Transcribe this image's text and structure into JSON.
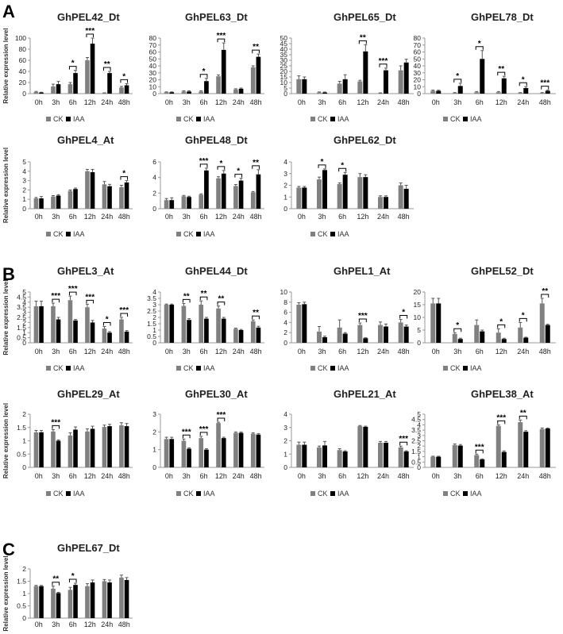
{
  "figure": {
    "ylabel": "Relative expression level",
    "legend": [
      {
        "name": "CK",
        "color": "#808080"
      },
      {
        "name": "IAA",
        "color": "#000000"
      }
    ],
    "panels": [
      {
        "letter": "A"
      },
      {
        "letter": "B"
      },
      {
        "letter": "C"
      }
    ]
  },
  "chart_data": [
    {
      "type": "bar",
      "panel": "A",
      "title": "GhPEL42_Dt",
      "categories": [
        "0h",
        "3h",
        "6h",
        "12h",
        "24h",
        "48h"
      ],
      "ylim": [
        0,
        100
      ],
      "yticks": [
        0,
        20,
        40,
        60,
        80,
        100
      ],
      "series": [
        {
          "name": "CK",
          "values": [
            3,
            13,
            17,
            60,
            1,
            11
          ]
        },
        {
          "name": "IAA",
          "values": [
            2,
            17,
            37,
            90,
            37,
            15
          ]
        }
      ],
      "errors": [
        [
          1,
          4,
          3,
          5,
          0.5,
          2
        ],
        [
          0.5,
          5,
          5,
          10,
          3,
          3
        ]
      ],
      "significance": [
        {
          "x": "6h",
          "label": "*"
        },
        {
          "x": "12h",
          "label": "***"
        },
        {
          "x": "24h",
          "label": "**"
        },
        {
          "x": "48h",
          "label": "*"
        }
      ]
    },
    {
      "type": "bar",
      "panel": "A",
      "title": "GhPEL63_Dt",
      "categories": [
        "0h",
        "3h",
        "6h",
        "12h",
        "24h",
        "48h"
      ],
      "ylim": [
        0,
        80
      ],
      "yticks": [
        0,
        10,
        20,
        30,
        40,
        50,
        60,
        70,
        80
      ],
      "series": [
        {
          "name": "CK",
          "values": [
            2,
            3,
            3,
            25,
            6,
            38
          ]
        },
        {
          "name": "IAA",
          "values": [
            2,
            3,
            18,
            63,
            7,
            53
          ]
        }
      ],
      "errors": [
        [
          0.5,
          1,
          1,
          2,
          1,
          2
        ],
        [
          0.5,
          1,
          4,
          10,
          1,
          4
        ]
      ],
      "significance": [
        {
          "x": "6h",
          "label": "*"
        },
        {
          "x": "12h",
          "label": "***"
        },
        {
          "x": "48h",
          "label": "**"
        }
      ]
    },
    {
      "type": "bar",
      "panel": "A",
      "title": "GhPEL65_Dt",
      "categories": [
        "0h",
        "3h",
        "6h",
        "12h",
        "24h",
        "48h"
      ],
      "ylim": [
        0,
        50
      ],
      "yticks": [
        0,
        5,
        10,
        15,
        20,
        25,
        30,
        35,
        40,
        45,
        50
      ],
      "series": [
        {
          "name": "CK",
          "values": [
            13,
            1,
            9,
            11,
            0.5,
            21
          ]
        },
        {
          "name": "IAA",
          "values": [
            13,
            1,
            13,
            38,
            21,
            28
          ]
        }
      ],
      "errors": [
        [
          3,
          0.5,
          2,
          1,
          0.2,
          4
        ],
        [
          2,
          0.5,
          4,
          6,
          2,
          3
        ]
      ],
      "significance": [
        {
          "x": "12h",
          "label": "**"
        },
        {
          "x": "24h",
          "label": "***"
        }
      ]
    },
    {
      "type": "bar",
      "panel": "A",
      "title": "GhPEL78_Dt",
      "categories": [
        "0h",
        "3h",
        "6h",
        "12h",
        "24h",
        "48h"
      ],
      "ylim": [
        0,
        80
      ],
      "yticks": [
        0,
        10,
        20,
        30,
        40,
        50,
        60,
        70,
        80
      ],
      "series": [
        {
          "name": "CK",
          "values": [
            4,
            1,
            2,
            2,
            1,
            1
          ]
        },
        {
          "name": "IAA",
          "values": [
            4,
            11,
            50,
            22,
            8,
            4
          ]
        }
      ],
      "errors": [
        [
          1,
          0.5,
          1,
          1,
          0.5,
          0.5
        ],
        [
          1,
          4,
          12,
          3,
          2,
          1
        ]
      ],
      "significance": [
        {
          "x": "3h",
          "label": "*"
        },
        {
          "x": "6h",
          "label": "*"
        },
        {
          "x": "12h",
          "label": "**"
        },
        {
          "x": "24h",
          "label": "*"
        },
        {
          "x": "48h",
          "label": "***"
        }
      ]
    },
    {
      "type": "bar",
      "panel": "A",
      "title": "GhPEL4_At",
      "categories": [
        "0h",
        "3h",
        "6h",
        "12h",
        "24h",
        "48h"
      ],
      "ylim": [
        0,
        5
      ],
      "yticks": [
        0,
        1,
        2,
        3,
        4,
        5
      ],
      "series": [
        {
          "name": "CK",
          "values": [
            1.1,
            1.3,
            1.9,
            4.0,
            2.6,
            2.3
          ]
        },
        {
          "name": "IAA",
          "values": [
            1.1,
            1.4,
            2.1,
            3.9,
            2.4,
            2.8
          ]
        }
      ],
      "errors": [
        [
          0.1,
          0.1,
          0.1,
          0.2,
          0.3,
          0.2
        ],
        [
          0.2,
          0.1,
          0.1,
          0.3,
          0.2,
          0.2
        ]
      ],
      "significance": [
        {
          "x": "48h",
          "label": "*"
        }
      ]
    },
    {
      "type": "bar",
      "panel": "A",
      "title": "GhPEL48_Dt",
      "categories": [
        "0h",
        "3h",
        "6h",
        "12h",
        "24h",
        "48h"
      ],
      "ylim": [
        0,
        6
      ],
      "yticks": [
        0,
        2,
        4,
        6
      ],
      "series": [
        {
          "name": "CK",
          "values": [
            1.1,
            1.6,
            1.8,
            3.9,
            2.9,
            2.1
          ]
        },
        {
          "name": "IAA",
          "values": [
            1.1,
            1.5,
            4.9,
            4.5,
            3.6,
            4.4
          ]
        }
      ],
      "errors": [
        [
          0.2,
          0.1,
          0.1,
          0.2,
          0.2,
          0.1
        ],
        [
          0.3,
          0.1,
          0.3,
          0.4,
          0.3,
          0.6
        ]
      ],
      "significance": [
        {
          "x": "6h",
          "label": "***"
        },
        {
          "x": "12h",
          "label": "*"
        },
        {
          "x": "24h",
          "label": "*"
        },
        {
          "x": "48h",
          "label": "**"
        }
      ]
    },
    {
      "type": "bar",
      "panel": "A",
      "title": "GhPEL62_Dt",
      "categories": [
        "0h",
        "3h",
        "6h",
        "12h",
        "24h",
        "48h"
      ],
      "ylim": [
        0,
        4
      ],
      "yticks": [
        0,
        1,
        2,
        3,
        4
      ],
      "series": [
        {
          "name": "CK",
          "values": [
            1.8,
            2.5,
            2.1,
            2.7,
            1.0,
            2.0
          ]
        },
        {
          "name": "IAA",
          "values": [
            1.8,
            3.3,
            2.9,
            2.7,
            1.0,
            1.7
          ]
        }
      ],
      "errors": [
        [
          0.1,
          0.2,
          0.1,
          0.3,
          0.1,
          0.2
        ],
        [
          0.1,
          0.1,
          0.2,
          0.2,
          0.1,
          0.3
        ]
      ],
      "significance": [
        {
          "x": "3h",
          "label": "*"
        },
        {
          "x": "6h",
          "label": "*"
        }
      ]
    },
    {
      "type": "bar",
      "panel": "B",
      "title": "GhPEL3_At",
      "categories": [
        "0h",
        "3h",
        "6h",
        "12h",
        "24h",
        "48h"
      ],
      "ylim": [
        0,
        5
      ],
      "yticks": [
        0,
        0.5,
        1,
        1.5,
        2,
        2.5,
        3,
        3.5,
        4,
        4.5,
        5
      ],
      "series": [
        {
          "name": "CK",
          "values": [
            3.6,
            3.6,
            4.2,
            3.5,
            1.4,
            2.3
          ]
        },
        {
          "name": "IAA",
          "values": [
            3.6,
            2.3,
            2.2,
            2.0,
            1.0,
            1.1
          ]
        }
      ],
      "errors": [
        [
          0.5,
          0.3,
          0.4,
          0.3,
          0.2,
          0.2
        ],
        [
          0.5,
          0.2,
          0.1,
          0.2,
          0.1,
          0.1
        ]
      ],
      "significance": [
        {
          "x": "3h",
          "label": "***"
        },
        {
          "x": "6h",
          "label": "***"
        },
        {
          "x": "12h",
          "label": "***"
        },
        {
          "x": "24h",
          "label": "*"
        },
        {
          "x": "48h",
          "label": "***"
        }
      ]
    },
    {
      "type": "bar",
      "panel": "B",
      "title": "GhPEL44_Dt",
      "categories": [
        "0h",
        "3h",
        "6h",
        "12h",
        "24h",
        "48h"
      ],
      "ylim": [
        0,
        4
      ],
      "yticks": [
        0,
        0.5,
        1,
        1.5,
        2,
        2.5,
        3,
        3.5,
        4
      ],
      "series": [
        {
          "name": "CK",
          "values": [
            3.0,
            2.9,
            3.0,
            2.7,
            1.1,
            1.7
          ]
        },
        {
          "name": "IAA",
          "values": [
            3.0,
            1.8,
            1.9,
            1.9,
            1.0,
            1.2
          ]
        }
      ],
      "errors": [
        [
          0.05,
          0.2,
          0.3,
          0.2,
          0.05,
          0.1
        ],
        [
          0.05,
          0.1,
          0.1,
          0.1,
          0.05,
          0.1
        ]
      ],
      "significance": [
        {
          "x": "3h",
          "label": "**"
        },
        {
          "x": "6h",
          "label": "**"
        },
        {
          "x": "12h",
          "label": "**"
        },
        {
          "x": "48h",
          "label": "**"
        }
      ]
    },
    {
      "type": "bar",
      "panel": "B",
      "title": "GhPEL1_At",
      "categories": [
        "0h",
        "3h",
        "6h",
        "12h",
        "24h",
        "48h"
      ],
      "ylim": [
        0,
        10
      ],
      "yticks": [
        0,
        2,
        4,
        6,
        8,
        10
      ],
      "series": [
        {
          "name": "CK",
          "values": [
            7.5,
            2.2,
            3.0,
            3.5,
            3.5,
            4.0
          ]
        },
        {
          "name": "IAA",
          "values": [
            7.6,
            1.1,
            1.8,
            0.9,
            3.2,
            3.2
          ]
        }
      ],
      "errors": [
        [
          0.4,
          1.0,
          1.5,
          0.4,
          0.6,
          0.6
        ],
        [
          0.4,
          0.2,
          0.2,
          0.1,
          0.5,
          0.3
        ]
      ],
      "significance": [
        {
          "x": "12h",
          "label": "***"
        },
        {
          "x": "48h",
          "label": "*"
        }
      ]
    },
    {
      "type": "bar",
      "panel": "B",
      "title": "GhPEL52_Dt",
      "categories": [
        "0h",
        "3h",
        "6h",
        "12h",
        "24h",
        "48h"
      ],
      "ylim": [
        0,
        20
      ],
      "yticks": [
        0,
        5,
        10,
        15,
        20
      ],
      "series": [
        {
          "name": "CK",
          "values": [
            15.5,
            3.5,
            7.0,
            4.0,
            6.0,
            15.5
          ]
        },
        {
          "name": "IAA",
          "values": [
            15.5,
            1.5,
            4.5,
            1.5,
            2.0,
            7.0
          ]
        }
      ],
      "errors": [
        [
          2.0,
          0.5,
          2.0,
          1.5,
          2.0,
          2.0
        ],
        [
          2.0,
          0.3,
          0.5,
          0.3,
          0.2,
          0.3
        ]
      ],
      "significance": [
        {
          "x": "3h",
          "label": "*"
        },
        {
          "x": "12h",
          "label": "*"
        },
        {
          "x": "24h",
          "label": "*"
        },
        {
          "x": "48h",
          "label": "**"
        }
      ]
    },
    {
      "type": "bar",
      "panel": "B",
      "title": "GhPEL29_At",
      "categories": [
        "0h",
        "3h",
        "6h",
        "12h",
        "24h",
        "48h"
      ],
      "ylim": [
        0,
        2
      ],
      "yticks": [
        0,
        0.5,
        1,
        1.5,
        2
      ],
      "series": [
        {
          "name": "CK",
          "values": [
            1.32,
            1.35,
            1.2,
            1.35,
            1.52,
            1.58
          ]
        },
        {
          "name": "IAA",
          "values": [
            1.32,
            1.0,
            1.42,
            1.45,
            1.55,
            1.55
          ]
        }
      ],
      "errors": [
        [
          0.07,
          0.07,
          0.1,
          0.1,
          0.07,
          0.1
        ],
        [
          0.07,
          0.03,
          0.1,
          0.1,
          0.07,
          0.1
        ]
      ],
      "significance": [
        {
          "x": "3h",
          "label": "***"
        }
      ]
    },
    {
      "type": "bar",
      "panel": "B",
      "title": "GhPEL30_At",
      "categories": [
        "0h",
        "3h",
        "6h",
        "12h",
        "24h",
        "48h"
      ],
      "ylim": [
        0,
        3
      ],
      "yticks": [
        0,
        1,
        2,
        3
      ],
      "series": [
        {
          "name": "CK",
          "values": [
            1.6,
            1.5,
            1.65,
            2.5,
            1.95,
            1.9
          ]
        },
        {
          "name": "IAA",
          "values": [
            1.6,
            1.05,
            1.0,
            1.65,
            1.95,
            1.85
          ]
        }
      ],
      "errors": [
        [
          0.1,
          0.1,
          0.1,
          0.05,
          0.05,
          0.05
        ],
        [
          0.1,
          0.05,
          0.05,
          0.05,
          0.05,
          0.05
        ]
      ],
      "significance": [
        {
          "x": "3h",
          "label": "***"
        },
        {
          "x": "6h",
          "label": "***"
        },
        {
          "x": "12h",
          "label": "***"
        }
      ]
    },
    {
      "type": "bar",
      "panel": "B",
      "title": "GhPEL21_At",
      "categories": [
        "0h",
        "3h",
        "6h",
        "12h",
        "24h",
        "48h"
      ],
      "ylim": [
        0,
        4
      ],
      "yticks": [
        0,
        1,
        2,
        3,
        4
      ],
      "series": [
        {
          "name": "CK",
          "values": [
            1.7,
            1.5,
            1.3,
            3.1,
            1.85,
            1.5
          ]
        },
        {
          "name": "IAA",
          "values": [
            1.7,
            1.65,
            1.2,
            3.05,
            1.85,
            1.2
          ]
        }
      ],
      "errors": [
        [
          0.2,
          0.1,
          0.1,
          0.05,
          0.1,
          0.1
        ],
        [
          0.2,
          0.3,
          0.05,
          0.05,
          0.1,
          0.05
        ]
      ],
      "significance": [
        {
          "x": "48h",
          "label": "***"
        }
      ]
    },
    {
      "type": "bar",
      "panel": "B",
      "title": "GhPEL38_At",
      "categories": [
        "0h",
        "3h",
        "6h",
        "12h",
        "24h",
        "48h"
      ],
      "ylim": [
        0,
        5
      ],
      "yticks": [
        0,
        0.5,
        1,
        1.5,
        2,
        2.5,
        3,
        3.5,
        4,
        4.5,
        5
      ],
      "series": [
        {
          "name": "CK",
          "values": [
            1.0,
            2.1,
            1.15,
            3.9,
            4.25,
            3.6
          ]
        },
        {
          "name": "IAA",
          "values": [
            1.0,
            2.05,
            0.75,
            1.45,
            3.35,
            3.65
          ]
        }
      ],
      "errors": [
        [
          0.05,
          0.1,
          0.1,
          0.1,
          0.2,
          0.1
        ],
        [
          0.05,
          0.1,
          0.05,
          0.1,
          0.1,
          0.05
        ]
      ],
      "significance": [
        {
          "x": "6h",
          "label": "***"
        },
        {
          "x": "12h",
          "label": "***"
        },
        {
          "x": "24h",
          "label": "**"
        }
      ]
    },
    {
      "type": "bar",
      "panel": "C",
      "title": "GhPEL67_Dt",
      "categories": [
        "0h",
        "3h",
        "6h",
        "12h",
        "24h",
        "48h"
      ],
      "ylim": [
        0,
        2
      ],
      "yticks": [
        0,
        0.5,
        1,
        1.5,
        2
      ],
      "series": [
        {
          "name": "CK",
          "values": [
            1.3,
            1.2,
            1.15,
            1.3,
            1.5,
            1.65
          ]
        },
        {
          "name": "IAA",
          "values": [
            1.3,
            1.02,
            1.35,
            1.45,
            1.45,
            1.55
          ]
        }
      ],
      "errors": [
        [
          0.03,
          0.1,
          0.1,
          0.1,
          0.07,
          0.1
        ],
        [
          0.03,
          0.03,
          0.07,
          0.1,
          0.1,
          0.1
        ]
      ],
      "significance": [
        {
          "x": "3h",
          "label": "**"
        },
        {
          "x": "6h",
          "label": "*"
        }
      ]
    }
  ]
}
